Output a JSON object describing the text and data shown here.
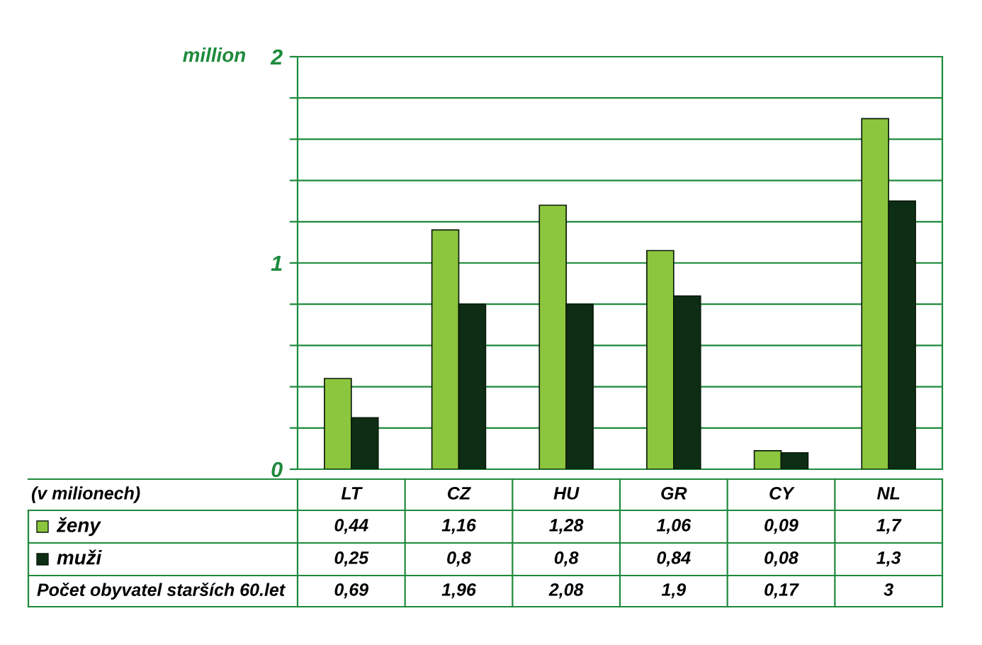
{
  "chart_data": {
    "type": "bar",
    "ylabel": "million",
    "categories": [
      "LT",
      "CZ",
      "HU",
      "GR",
      "CY",
      "NL"
    ],
    "series": [
      {
        "name": "ženy",
        "color": "#8cc63e",
        "values": [
          0.44,
          1.16,
          1.28,
          1.06,
          0.09,
          1.7
        ],
        "value_labels": [
          "0,44",
          "1,16",
          "1,28",
          "1,06",
          "0,09",
          "1,7"
        ]
      },
      {
        "name": "muži",
        "color": "#0d2e14",
        "values": [
          0.25,
          0.8,
          0.8,
          0.84,
          0.08,
          1.3
        ],
        "value_labels": [
          "0,25",
          "0,8",
          "0,8",
          "0,84",
          "0,08",
          "1,3"
        ]
      }
    ],
    "annotations": [
      "(v milionech)",
      "Počet obyvatel starších 60.let",
      "0,69",
      "1,96",
      "2,08",
      "1,9",
      "0,17",
      "3"
    ],
    "ylim": [
      0,
      2
    ],
    "yticks": [
      0,
      {
        "value": 0.2,
        "label": null
      },
      {
        "value": 0.4,
        "label": null
      },
      {
        "value": 0.6,
        "label": null
      },
      {
        "value": 0.8,
        "label": null
      },
      1,
      {
        "value": 1.2,
        "label": null
      },
      {
        "value": 1.4,
        "label": null
      },
      {
        "value": 1.6,
        "label": null
      },
      {
        "value": 1.8,
        "label": null
      },
      2
    ],
    "grid": "y",
    "legend": "bottom"
  }
}
